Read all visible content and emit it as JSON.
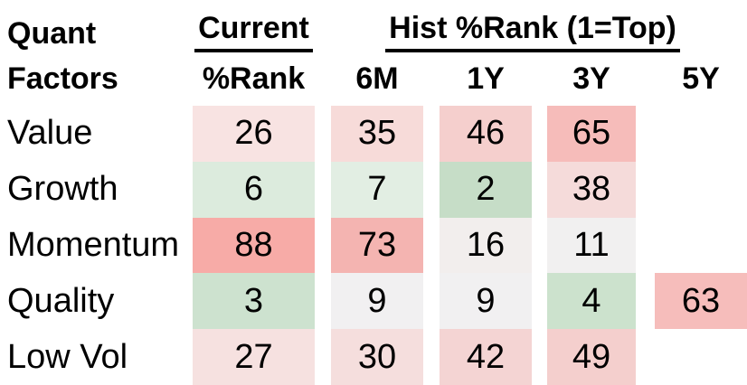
{
  "title_block": {
    "line1": "Quant",
    "line2": "Factors"
  },
  "groups": {
    "current": "Current",
    "hist": "Hist %Rank (1=Top)"
  },
  "columns": [
    "%Rank",
    "6M",
    "1Y",
    "3Y",
    "5Y"
  ],
  "colors": {
    "text": "#000000",
    "background": "#ffffff",
    "scale_low_green": "#c6ddc7",
    "scale_mid_white": "#f1f0f0",
    "scale_high_red": "#f7aba7"
  },
  "table": {
    "rows": [
      {
        "label": "Value",
        "cells": [
          {
            "value": "26",
            "bg": "#f8e3e2"
          },
          {
            "value": "35",
            "bg": "#f7dbd9"
          },
          {
            "value": "46",
            "bg": "#f5cfcd"
          },
          {
            "value": "65",
            "bg": "#f6bcba"
          },
          null
        ]
      },
      {
        "label": "Growth",
        "cells": [
          {
            "value": "6",
            "bg": "#dcebdd"
          },
          {
            "value": "7",
            "bg": "#e2eee3"
          },
          {
            "value": "2",
            "bg": "#c6ddc7"
          },
          {
            "value": "38",
            "bg": "#f5dbda"
          },
          null
        ]
      },
      {
        "label": "Momentum",
        "cells": [
          {
            "value": "88",
            "bg": "#f7aba7"
          },
          {
            "value": "73",
            "bg": "#f4b4b1"
          },
          {
            "value": "16",
            "bg": "#f2eeed"
          },
          {
            "value": "11",
            "bg": "#f1f0f0"
          },
          null
        ]
      },
      {
        "label": "Quality",
        "cells": [
          {
            "value": "3",
            "bg": "#cde2cf"
          },
          {
            "value": "9",
            "bg": "#f1f0f1"
          },
          {
            "value": "9",
            "bg": "#f1f0f1"
          },
          {
            "value": "4",
            "bg": "#cce2cd"
          },
          {
            "value": "63",
            "bg": "#f6bdbb"
          }
        ]
      },
      {
        "label": "Low Vol",
        "cells": [
          {
            "value": "27",
            "bg": "#f6e1e0"
          },
          {
            "value": "30",
            "bg": "#f5dedd"
          },
          {
            "value": "42",
            "bg": "#f4d4d3"
          },
          {
            "value": "49",
            "bg": "#f4cfcd"
          },
          null
        ]
      }
    ]
  },
  "chart_data": {
    "type": "heatmap",
    "title": "Quant Factors %Rank heatmap",
    "group_headers": {
      "current": "Current",
      "hist": "Hist %Rank (1=Top)"
    },
    "columns": [
      "Current %Rank",
      "6M",
      "1Y",
      "3Y",
      "5Y"
    ],
    "rows": [
      "Value",
      "Growth",
      "Momentum",
      "Quality",
      "Low Vol"
    ],
    "values": [
      [
        26,
        35,
        46,
        65,
        null
      ],
      [
        6,
        7,
        2,
        38,
        null
      ],
      [
        88,
        73,
        16,
        11,
        null
      ],
      [
        3,
        9,
        9,
        4,
        63
      ],
      [
        27,
        30,
        42,
        49,
        null
      ]
    ],
    "scale_note": "1=Top; low values green, mid ~10-15 near white, high values red",
    "value_range": [
      1,
      100
    ]
  }
}
